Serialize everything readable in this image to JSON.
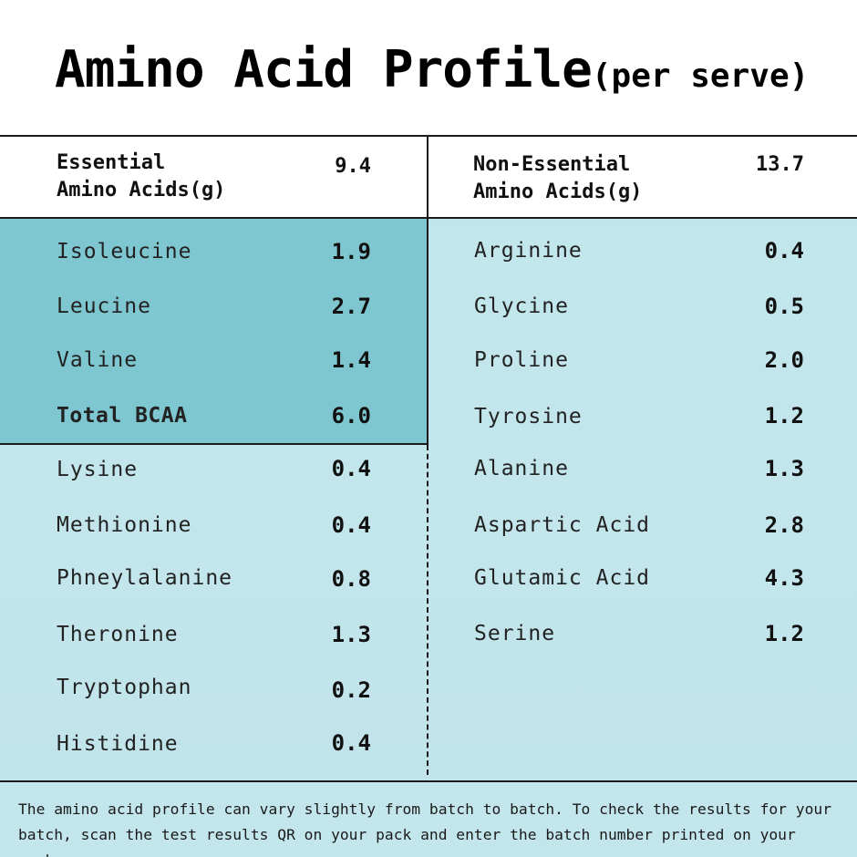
{
  "title": {
    "main": "Amino Acid Profile",
    "sub": "(per serve)"
  },
  "essential": {
    "header_label": "Essential\nAmino Acids(g)",
    "header_value": "9.4",
    "bcaa": [
      {
        "name": "Isoleucine",
        "value": "1.9"
      },
      {
        "name": "Leucine",
        "value": "2.7"
      },
      {
        "name": "Valine",
        "value": "1.4"
      },
      {
        "name": "Total BCAA",
        "value": "6.0"
      }
    ],
    "others": [
      {
        "name": "Lysine",
        "value": "0.4"
      },
      {
        "name": "Methionine",
        "value": "0.4"
      },
      {
        "name": "Phneylalanine",
        "value": "0.8"
      },
      {
        "name": "Theronine",
        "value": "1.3"
      },
      {
        "name": "Tryptophan",
        "value": "0.2"
      },
      {
        "name": "Histidine",
        "value": "0.4"
      }
    ]
  },
  "non_essential": {
    "header_label": "Non-Essential\nAmino Acids(g)",
    "header_value": "13.7",
    "items": [
      {
        "name": "Arginine",
        "value": "0.4"
      },
      {
        "name": "Glycine",
        "value": "0.5"
      },
      {
        "name": "Proline",
        "value": "2.0"
      },
      {
        "name": "Tyrosine",
        "value": "1.2"
      },
      {
        "name": "Alanine",
        "value": "1.3"
      },
      {
        "name": "Aspartic Acid",
        "value": "2.8"
      },
      {
        "name": "Glutamic Acid",
        "value": "4.3"
      },
      {
        "name": "Serine",
        "value": "1.2"
      }
    ]
  },
  "footer": "The amino acid profile can vary slightly from batch to batch. To check the results for your batch, scan the test results QR on your pack and enter the batch number printed on your pack."
}
